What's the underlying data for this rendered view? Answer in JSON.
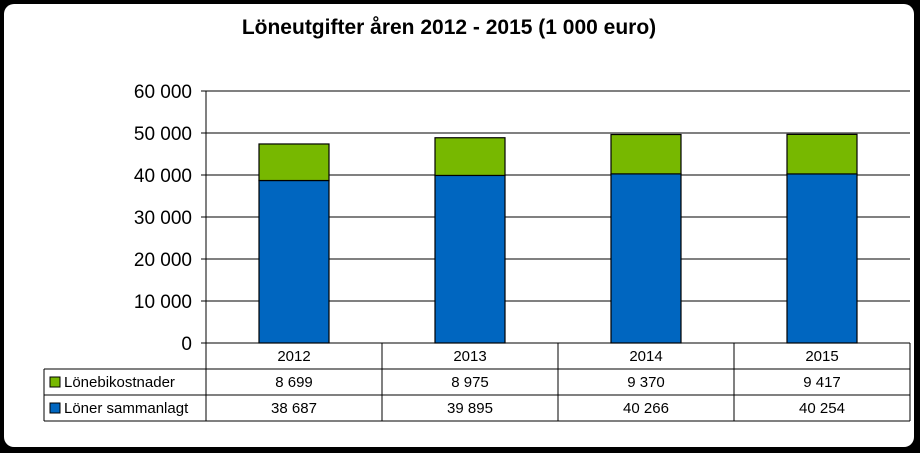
{
  "chart_data": {
    "type": "bar",
    "stacked": true,
    "title": "Löneutgifter åren 2012 - 2015 (1 000 euro)",
    "categories": [
      "2012",
      "2013",
      "2014",
      "2015"
    ],
    "series": [
      {
        "name": "Löner sammanlagt",
        "values": [
          38687,
          39895,
          40266,
          40254
        ],
        "labels": [
          "38 687",
          "39 895",
          "40 266",
          "40 254"
        ],
        "color": "#0066c0"
      },
      {
        "name": "Lönebikostnader",
        "values": [
          8699,
          8975,
          9370,
          9417
        ],
        "labels": [
          "8 699",
          "8 975",
          "9 370",
          "9 417"
        ],
        "color": "#77b800"
      }
    ],
    "ylim": [
      0,
      60000
    ],
    "yticks": [
      0,
      10000,
      20000,
      30000,
      40000,
      50000,
      60000
    ],
    "ytick_labels": [
      "0",
      "10 000",
      "20 000",
      "30 000",
      "40 000",
      "50 000",
      "60 000"
    ],
    "grid": true,
    "legend": "data-table"
  }
}
